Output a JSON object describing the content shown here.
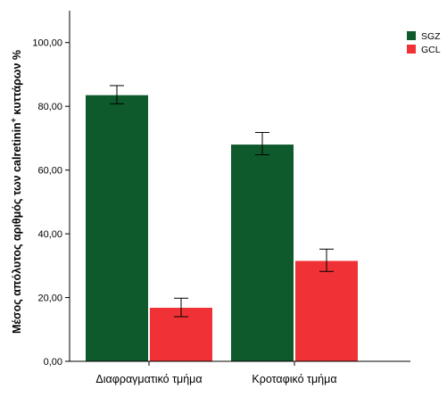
{
  "chart_data": {
    "type": "bar",
    "title": "",
    "xlabel": "",
    "ylabel_text": "Μέσος απόλυτος αριθμός των calretinin",
    "ylabel_sup": "+",
    "ylabel_tail": " κυττάρων %",
    "categories": [
      "Διαφραγματικό τμήμα",
      "Κροταφικό τμήμα"
    ],
    "series": [
      {
        "name": "SGZ",
        "color": "#0f5a2c",
        "values": [
          83.5,
          68.0
        ],
        "error_low": [
          80.8,
          64.8
        ],
        "error_high": [
          86.5,
          71.8
        ]
      },
      {
        "name": "GCL",
        "color": "#f03236",
        "values": [
          16.8,
          31.5
        ],
        "error_low": [
          14.0,
          28.2
        ],
        "error_high": [
          19.8,
          35.2
        ]
      }
    ],
    "ylim": [
      0,
      110
    ],
    "yticks": [
      0,
      20,
      40,
      60,
      80,
      100
    ],
    "ytick_labels": [
      "0,00",
      "20,00",
      "40,00",
      "60,00",
      "80,00",
      "100,00"
    ],
    "grid": false,
    "legend_position": "top-right"
  }
}
